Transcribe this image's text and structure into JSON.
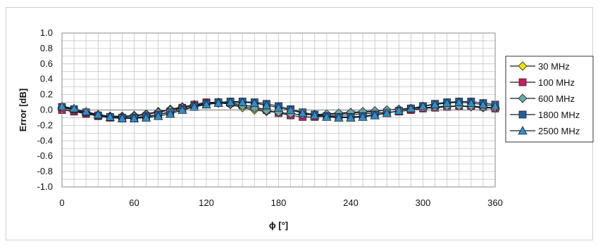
{
  "chart_data": {
    "type": "line",
    "title": "",
    "xlabel": "ϕ [°]",
    "ylabel": "Error [dB]",
    "xlim": [
      0,
      360
    ],
    "ylim": [
      -1.0,
      1.0
    ],
    "x_ticks": [
      0,
      60,
      120,
      180,
      240,
      300,
      360
    ],
    "x_tick_labels": [
      "0",
      "60",
      "120",
      "180",
      "240",
      "300",
      "360"
    ],
    "y_ticks": [
      1.0,
      0.8,
      0.6,
      0.4,
      0.2,
      0.0,
      -0.2,
      -0.4,
      -0.6,
      -0.8,
      -1.0
    ],
    "y_tick_labels": [
      "1.0",
      "0.8",
      "0.6",
      "0.4",
      "0.2",
      "0.0",
      "-0.2",
      "-0.4",
      "-0.6",
      "-0.8",
      "-1.0"
    ],
    "x_minor_step": 10,
    "y_minor_step": 0.1,
    "grid": true,
    "legend_position": "right",
    "x": [
      0,
      10,
      20,
      30,
      40,
      50,
      60,
      70,
      80,
      90,
      100,
      110,
      120,
      130,
      140,
      150,
      160,
      170,
      180,
      190,
      200,
      210,
      220,
      230,
      240,
      250,
      260,
      270,
      280,
      290,
      300,
      310,
      320,
      330,
      340,
      350,
      360
    ],
    "series": [
      {
        "name": "30 MHz",
        "color": "#e6e600",
        "marker": "diamond",
        "values": [
          0.01,
          -0.01,
          -0.04,
          -0.07,
          -0.08,
          -0.08,
          -0.07,
          -0.05,
          -0.02,
          0.01,
          0.04,
          0.07,
          0.09,
          0.1,
          0.07,
          0.03,
          0.0,
          -0.02,
          -0.03,
          -0.05,
          -0.06,
          -0.06,
          -0.06,
          -0.05,
          -0.04,
          -0.03,
          -0.02,
          0.0,
          0.01,
          0.02,
          0.03,
          0.04,
          0.05,
          0.05,
          0.04,
          0.03,
          0.02
        ]
      },
      {
        "name": "100 MHz",
        "color": "#cc1a66",
        "marker": "square",
        "values": [
          0.0,
          -0.02,
          -0.05,
          -0.08,
          -0.1,
          -0.11,
          -0.11,
          -0.09,
          -0.06,
          -0.02,
          0.03,
          0.07,
          0.1,
          0.1,
          0.09,
          0.07,
          0.04,
          0.0,
          -0.04,
          -0.07,
          -0.09,
          -0.09,
          -0.08,
          -0.07,
          -0.06,
          -0.05,
          -0.04,
          -0.03,
          -0.02,
          0.0,
          0.02,
          0.03,
          0.04,
          0.05,
          0.05,
          0.04,
          0.02
        ]
      },
      {
        "name": "600 MHz",
        "color": "#66aaaa",
        "marker": "diamond",
        "values": [
          0.03,
          0.0,
          -0.03,
          -0.06,
          -0.08,
          -0.09,
          -0.08,
          -0.06,
          -0.03,
          0.0,
          0.03,
          0.06,
          0.08,
          0.09,
          0.08,
          0.05,
          0.02,
          -0.01,
          -0.03,
          -0.05,
          -0.06,
          -0.06,
          -0.05,
          -0.04,
          -0.03,
          -0.02,
          -0.01,
          0.0,
          0.01,
          0.02,
          0.03,
          0.04,
          0.05,
          0.05,
          0.05,
          0.04,
          0.03
        ]
      },
      {
        "name": "1800 MHz",
        "color": "#1f5fa8",
        "marker": "square",
        "values": [
          0.04,
          0.01,
          -0.03,
          -0.07,
          -0.09,
          -0.1,
          -0.1,
          -0.08,
          -0.06,
          -0.03,
          0.01,
          0.05,
          0.08,
          0.1,
          0.11,
          0.11,
          0.1,
          0.08,
          0.05,
          0.01,
          -0.03,
          -0.06,
          -0.08,
          -0.09,
          -0.09,
          -0.08,
          -0.06,
          -0.04,
          -0.01,
          0.02,
          0.05,
          0.08,
          0.1,
          0.11,
          0.11,
          0.09,
          0.07
        ]
      },
      {
        "name": "2500 MHz",
        "color": "#2a8fd0",
        "marker": "triangle",
        "values": [
          0.05,
          0.02,
          -0.02,
          -0.06,
          -0.09,
          -0.11,
          -0.11,
          -0.1,
          -0.08,
          -0.05,
          0.0,
          0.04,
          0.07,
          0.09,
          0.1,
          0.1,
          0.09,
          0.06,
          0.03,
          0.0,
          -0.04,
          -0.07,
          -0.09,
          -0.1,
          -0.1,
          -0.09,
          -0.07,
          -0.04,
          -0.01,
          0.02,
          0.05,
          0.07,
          0.09,
          0.1,
          0.09,
          0.07,
          0.05
        ]
      }
    ]
  }
}
